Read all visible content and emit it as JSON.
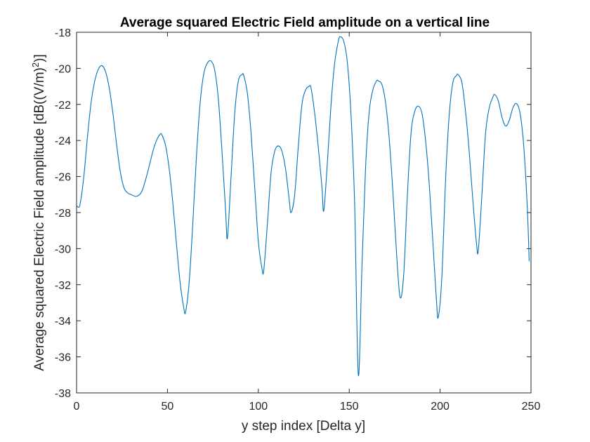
{
  "chart_data": {
    "type": "line",
    "title": "Average squared Electric Field amplitude on a vertical line",
    "xlabel": "y step index [Delta y]",
    "ylabel_main": "Average squared Electric Field amplitude [dB((V/m)",
    "ylabel_sup": "2",
    "ylabel_tail": ")]",
    "xlim": [
      0,
      250
    ],
    "ylim": [
      -38,
      -18
    ],
    "xticks": [
      0,
      50,
      100,
      150,
      200,
      250
    ],
    "xtick_labels": [
      "0",
      "50",
      "100",
      "150",
      "200",
      "250"
    ],
    "yticks": [
      -38,
      -36,
      -34,
      -32,
      -30,
      -28,
      -26,
      -24,
      -22,
      -20,
      -18
    ],
    "ytick_labels": [
      "-38",
      "-36",
      "-34",
      "-32",
      "-30",
      "-28",
      "-26",
      "-24",
      "-22",
      "-20",
      "-18"
    ],
    "grid": false,
    "series": [
      {
        "color": "#0072bd",
        "x": [
          0,
          1,
          2,
          4,
          6,
          8,
          10,
          12,
          14,
          16,
          18,
          20,
          22,
          24,
          26,
          28,
          30,
          33,
          36,
          39,
          42,
          44,
          46,
          47,
          49,
          51,
          53,
          55,
          57,
          59,
          60,
          62,
          64,
          66,
          68,
          70,
          72,
          74,
          76,
          78,
          80,
          82,
          83,
          85,
          87,
          89,
          91,
          92,
          94,
          96,
          98,
          100,
          102,
          103,
          105,
          107,
          109,
          111,
          113,
          115,
          117,
          118,
          120,
          122,
          124,
          126,
          128,
          129,
          131,
          133,
          135,
          136,
          138,
          140,
          142,
          144,
          145,
          147,
          149,
          151,
          153,
          155,
          157,
          159,
          161,
          163,
          165,
          166,
          168,
          170,
          172,
          174,
          176,
          178,
          180,
          182,
          184,
          186,
          188,
          190,
          192,
          194,
          196,
          198,
          199,
          201,
          203,
          205,
          207,
          209,
          210,
          212,
          214,
          216,
          218,
          220,
          221,
          223,
          225,
          227,
          229,
          230,
          232,
          234,
          236,
          238,
          240,
          242,
          244,
          246,
          248,
          249
        ],
        "values": [
          -27.6,
          -27.7,
          -27.5,
          -26.0,
          -23.8,
          -21.9,
          -20.7,
          -20.05,
          -19.85,
          -20.2,
          -21.1,
          -22.5,
          -24.2,
          -25.7,
          -26.6,
          -26.9,
          -27.0,
          -27.1,
          -26.8,
          -25.8,
          -24.6,
          -24.0,
          -23.65,
          -23.7,
          -24.3,
          -25.6,
          -27.5,
          -29.8,
          -31.9,
          -33.3,
          -33.5,
          -31.8,
          -28.5,
          -24.8,
          -21.9,
          -20.3,
          -19.7,
          -19.6,
          -20.1,
          -21.7,
          -24.6,
          -27.9,
          -29.4,
          -26.0,
          -22.5,
          -20.7,
          -20.35,
          -20.4,
          -21.4,
          -23.6,
          -26.6,
          -29.6,
          -31.1,
          -31.2,
          -28.6,
          -25.8,
          -24.6,
          -24.3,
          -24.6,
          -25.6,
          -27.3,
          -28.0,
          -27.0,
          -24.3,
          -22.0,
          -21.2,
          -21.0,
          -21.1,
          -22.5,
          -24.4,
          -26.6,
          -27.9,
          -25.2,
          -22.0,
          -19.7,
          -18.5,
          -18.25,
          -18.5,
          -19.7,
          -22.6,
          -27.6,
          -37.0,
          -31.0,
          -25.5,
          -22.4,
          -21.2,
          -20.7,
          -20.7,
          -20.9,
          -21.9,
          -23.9,
          -26.8,
          -30.2,
          -32.7,
          -31.4,
          -27.0,
          -23.6,
          -22.4,
          -22.1,
          -22.5,
          -24.0,
          -26.4,
          -29.6,
          -32.9,
          -33.8,
          -31.5,
          -26.2,
          -22.6,
          -20.8,
          -20.4,
          -20.35,
          -20.8,
          -22.4,
          -24.6,
          -27.3,
          -29.7,
          -30.1,
          -27.0,
          -23.6,
          -22.2,
          -21.6,
          -21.45,
          -21.8,
          -22.7,
          -23.2,
          -22.9,
          -22.2,
          -21.95,
          -22.5,
          -24.3,
          -27.8,
          -30.7
        ]
      }
    ]
  }
}
